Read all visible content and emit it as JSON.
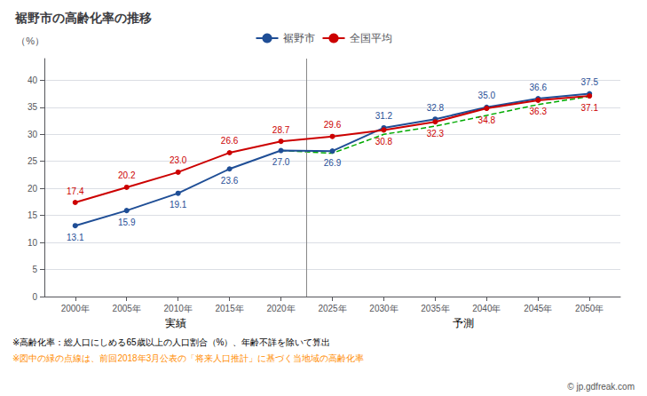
{
  "chart_data": {
    "type": "line",
    "title": "裾野市の高齢化率の推移",
    "ylabel": "（%）",
    "x": [
      2000,
      2005,
      2010,
      2015,
      2020,
      2025,
      2030,
      2035,
      2040,
      2045,
      2050
    ],
    "series": [
      {
        "name": "裾野市",
        "color": "#1F4E96",
        "marker": "circle",
        "values": [
          13.1,
          15.9,
          19.1,
          23.6,
          27.0,
          26.9,
          31.2,
          32.8,
          35.0,
          36.6,
          37.5
        ],
        "value_labels": [
          "13.1",
          "15.9",
          "19.1",
          "23.6",
          "27.0",
          "26.9",
          "31.2",
          "32.8",
          "35.0",
          "36.6",
          "37.5"
        ]
      },
      {
        "name": "全国平均",
        "color": "#CC0000",
        "marker": "circle",
        "values": [
          17.4,
          20.2,
          23.0,
          26.6,
          28.7,
          29.6,
          30.8,
          32.3,
          34.8,
          36.3,
          37.1
        ],
        "value_labels": [
          "17.4",
          "20.2",
          "23.0",
          "26.6",
          "28.7",
          "29.6",
          "30.8",
          "32.3",
          "34.8",
          "36.3",
          "37.1"
        ]
      },
      {
        "color": "#00AA00",
        "line_style": "dashed",
        "data_labels": false,
        "x": [
          2020,
          2025,
          2030,
          2035,
          2040,
          2045,
          2050
        ],
        "values": [
          27.0,
          26.5,
          30.0,
          31.5,
          33.5,
          35.5,
          37.0
        ]
      }
    ],
    "xlim": [
      1997,
      2053
    ],
    "xticks": [
      {
        "value": 2000,
        "label": "2000年"
      },
      {
        "value": 2005,
        "label": "2005年"
      },
      {
        "value": 2010,
        "label": "2010年"
      },
      {
        "value": 2015,
        "label": "2015年"
      },
      {
        "value": 2020,
        "label": "2020年"
      },
      {
        "value": 2025,
        "label": "2025年"
      },
      {
        "value": 2030,
        "label": "2030年"
      },
      {
        "value": 2035,
        "label": "2035年"
      },
      {
        "value": 2040,
        "label": "2040年"
      },
      {
        "value": 2045,
        "label": "2045年"
      },
      {
        "value": 2050,
        "label": "2050年"
      }
    ],
    "ylim": [
      0,
      44
    ],
    "yticks": [
      0,
      5,
      10,
      15,
      20,
      25,
      30,
      35,
      40
    ],
    "grid": true,
    "legend": "top",
    "data_labels": true,
    "vline": 2022.5,
    "annotations": [
      "実績",
      "予測"
    ],
    "notes": [
      {
        "text": "※高齢化率：総人口にしめる65歳以上の人口割合（%）、年齢不詳を除いて算出"
      },
      {
        "text": "※図中の緑の点線は、前回2018年3月公表の「将来人口推計」に基づく当地域の高齢化率",
        "color": "#FF8C00"
      }
    ],
    "watermark": "© jp.gdfreak.com"
  }
}
